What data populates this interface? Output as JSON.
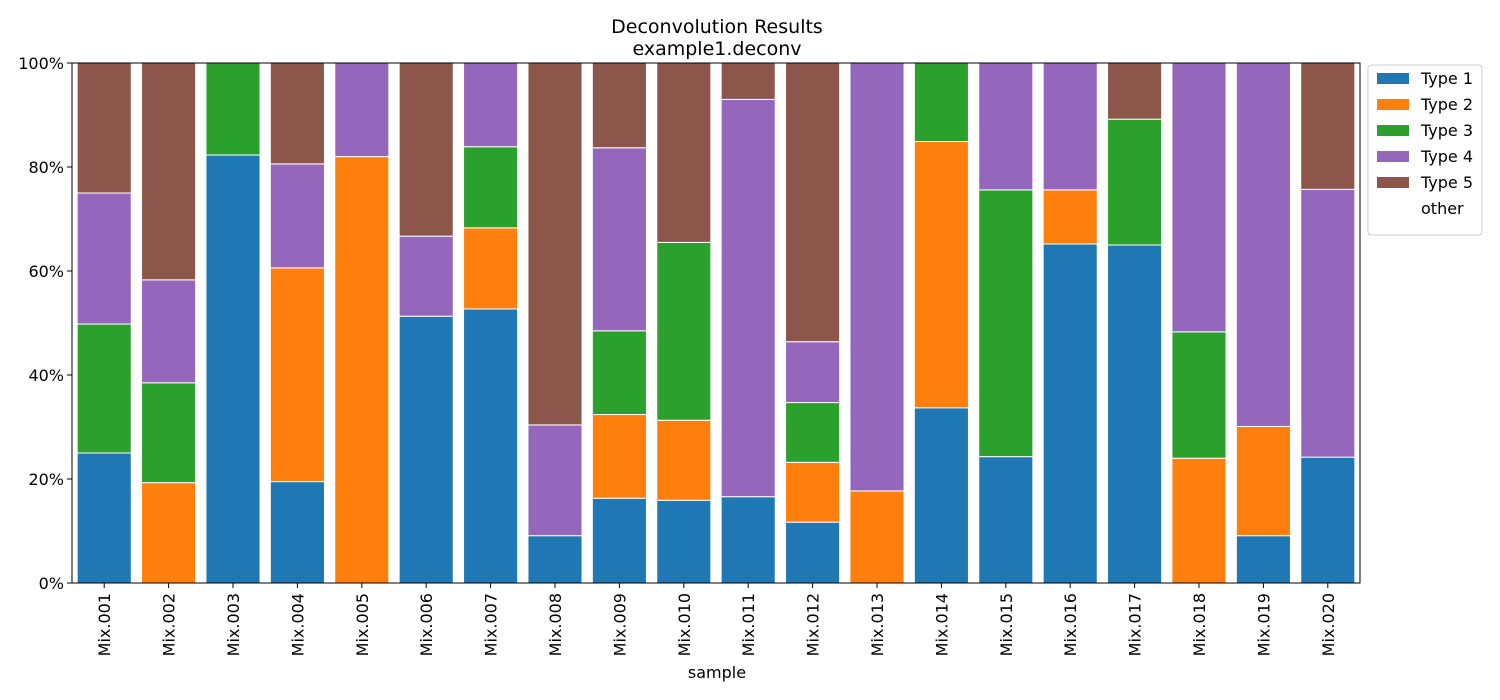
{
  "chart_data": {
    "type": "bar",
    "stacked": true,
    "title": "Deconvolution Results",
    "subtitle": "example1.deconv",
    "xlabel": "sample",
    "ylabel": "",
    "ylim": [
      0,
      1
    ],
    "y_tick_values": [
      0,
      0.2,
      0.4,
      0.6,
      0.8,
      1.0
    ],
    "y_tick_labels": [
      "0%",
      "20%",
      "40%",
      "60%",
      "80%",
      "100%"
    ],
    "grid": false,
    "legend_position": "outside-top-right",
    "categories": [
      "Mix.001",
      "Mix.002",
      "Mix.003",
      "Mix.004",
      "Mix.005",
      "Mix.006",
      "Mix.007",
      "Mix.008",
      "Mix.009",
      "Mix.010",
      "Mix.011",
      "Mix.012",
      "Mix.013",
      "Mix.014",
      "Mix.015",
      "Mix.016",
      "Mix.017",
      "Mix.018",
      "Mix.019",
      "Mix.020"
    ],
    "series": [
      {
        "name": "Type 1",
        "color": "#1f77b4",
        "values": [
          0.25,
          0,
          0.823,
          0.195,
          0,
          0.513,
          0.527,
          0.091,
          0.163,
          0.159,
          0.166,
          0.117,
          0,
          0.337,
          0.243,
          0.652,
          0.65,
          0,
          0.091,
          0.242
        ]
      },
      {
        "name": "Type 2",
        "color": "#ff7f0e",
        "values": [
          0,
          0.193,
          0,
          0.411,
          0.82,
          0,
          0.156,
          0,
          0.161,
          0.154,
          0,
          0.115,
          0.177,
          0.512,
          0,
          0.104,
          0,
          0.24,
          0.21,
          0
        ]
      },
      {
        "name": "Type 3",
        "color": "#2ca02c",
        "values": [
          0.248,
          0.192,
          0.177,
          0,
          0,
          0,
          0.156,
          0,
          0.161,
          0.342,
          0,
          0.115,
          0,
          0.151,
          0.513,
          0,
          0.242,
          0.243,
          0,
          0
        ]
      },
      {
        "name": "Type 4",
        "color": "#9467bd",
        "values": [
          0.252,
          0.198,
          0,
          0.2,
          0.18,
          0.154,
          0.161,
          0.213,
          0.352,
          0,
          0.764,
          0.117,
          0.823,
          0,
          0.244,
          0.244,
          0,
          0.517,
          0.699,
          0.515
        ]
      },
      {
        "name": "Type 5",
        "color": "#8c564b",
        "values": [
          0.25,
          0.417,
          0,
          0.194,
          0,
          0.333,
          0,
          0.696,
          0.163,
          0.345,
          0.07,
          0.536,
          0,
          0,
          0,
          0,
          0.108,
          0,
          0,
          0.243
        ]
      },
      {
        "name": "other",
        "color": "#ffffff",
        "values": [
          0,
          0,
          0,
          0,
          0,
          0,
          0,
          0,
          0,
          0,
          0,
          0,
          0,
          0,
          0,
          0,
          0,
          0,
          0,
          0
        ]
      }
    ]
  }
}
